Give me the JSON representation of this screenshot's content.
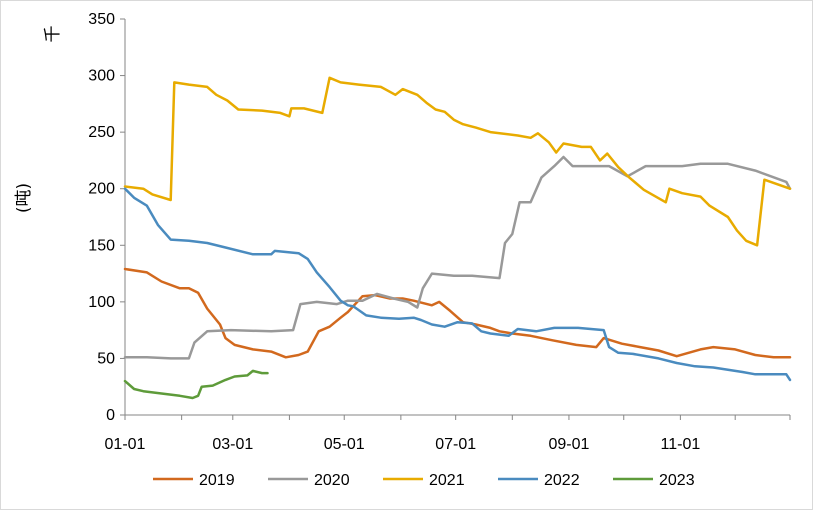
{
  "chart_data": {
    "type": "line",
    "title": "",
    "xlabel": "",
    "ylabel": "(吨)",
    "yunit": "千",
    "ylim": [
      0,
      350
    ],
    "y_ticks": [
      0,
      50,
      100,
      150,
      200,
      250,
      300,
      350
    ],
    "x_ticks": [
      "01-01",
      "03-01",
      "05-01",
      "07-01",
      "09-01",
      "11-01"
    ],
    "x_tick_days": [
      0,
      59,
      120,
      181,
      243,
      304
    ],
    "x_domain_days": [
      0,
      364
    ],
    "grid": false,
    "legend": "bottom",
    "series": [
      {
        "name": "2019",
        "color": "#d2691e",
        "points": [
          [
            0,
            129
          ],
          [
            12,
            126
          ],
          [
            20,
            118
          ],
          [
            30,
            112
          ],
          [
            35,
            112
          ],
          [
            40,
            108
          ],
          [
            45,
            94
          ],
          [
            52,
            80
          ],
          [
            55,
            68
          ],
          [
            60,
            62
          ],
          [
            70,
            58
          ],
          [
            80,
            56
          ],
          [
            88,
            51
          ],
          [
            95,
            53
          ],
          [
            100,
            56
          ],
          [
            106,
            74
          ],
          [
            112,
            78
          ],
          [
            118,
            86
          ],
          [
            122,
            91
          ],
          [
            130,
            105
          ],
          [
            137,
            106
          ],
          [
            145,
            103
          ],
          [
            152,
            103
          ],
          [
            158,
            101
          ],
          [
            168,
            97
          ],
          [
            172,
            100
          ],
          [
            178,
            92
          ],
          [
            185,
            82
          ],
          [
            192,
            80
          ],
          [
            200,
            77
          ],
          [
            205,
            74
          ],
          [
            212,
            72
          ],
          [
            222,
            70
          ],
          [
            234,
            66
          ],
          [
            247,
            62
          ],
          [
            258,
            60
          ],
          [
            262,
            68
          ],
          [
            272,
            63
          ],
          [
            282,
            60
          ],
          [
            292,
            57
          ],
          [
            302,
            52
          ],
          [
            315,
            58
          ],
          [
            322,
            60
          ],
          [
            334,
            58
          ],
          [
            345,
            53
          ],
          [
            355,
            51
          ],
          [
            364,
            51
          ]
        ]
      },
      {
        "name": "2020",
        "color": "#999999",
        "points": [
          [
            0,
            51
          ],
          [
            12,
            51
          ],
          [
            25,
            50
          ],
          [
            35,
            50
          ],
          [
            38,
            64
          ],
          [
            45,
            74
          ],
          [
            58,
            75
          ],
          [
            80,
            74
          ],
          [
            92,
            75
          ],
          [
            96,
            98
          ],
          [
            105,
            100
          ],
          [
            116,
            98
          ],
          [
            122,
            101
          ],
          [
            130,
            101
          ],
          [
            138,
            107
          ],
          [
            147,
            103
          ],
          [
            155,
            100
          ],
          [
            160,
            95
          ],
          [
            163,
            112
          ],
          [
            168,
            125
          ],
          [
            180,
            123
          ],
          [
            190,
            123
          ],
          [
            205,
            121
          ],
          [
            208,
            152
          ],
          [
            212,
            160
          ],
          [
            216,
            188
          ],
          [
            222,
            188
          ],
          [
            228,
            210
          ],
          [
            235,
            220
          ],
          [
            240,
            228
          ],
          [
            245,
            220
          ],
          [
            255,
            220
          ],
          [
            265,
            220
          ],
          [
            275,
            211
          ],
          [
            285,
            220
          ],
          [
            305,
            220
          ],
          [
            315,
            222
          ],
          [
            330,
            222
          ],
          [
            345,
            216
          ],
          [
            362,
            206
          ],
          [
            364,
            200
          ]
        ]
      },
      {
        "name": "2021",
        "color": "#e8ab00",
        "points": [
          [
            0,
            202
          ],
          [
            10,
            200
          ],
          [
            15,
            195
          ],
          [
            25,
            190
          ],
          [
            27,
            294
          ],
          [
            35,
            292
          ],
          [
            45,
            290
          ],
          [
            50,
            283
          ],
          [
            56,
            278
          ],
          [
            62,
            270
          ],
          [
            75,
            269
          ],
          [
            85,
            267
          ],
          [
            90,
            264
          ],
          [
            91,
            271
          ],
          [
            98,
            271
          ],
          [
            108,
            267
          ],
          [
            112,
            298
          ],
          [
            118,
            294
          ],
          [
            128,
            292
          ],
          [
            140,
            290
          ],
          [
            148,
            283
          ],
          [
            152,
            288
          ],
          [
            160,
            283
          ],
          [
            165,
            276
          ],
          [
            170,
            270
          ],
          [
            175,
            268
          ],
          [
            180,
            261
          ],
          [
            185,
            257
          ],
          [
            192,
            254
          ],
          [
            200,
            250
          ],
          [
            215,
            247
          ],
          [
            222,
            245
          ],
          [
            226,
            249
          ],
          [
            232,
            241
          ],
          [
            236,
            232
          ],
          [
            240,
            240
          ],
          [
            250,
            237
          ],
          [
            255,
            237
          ],
          [
            260,
            225
          ],
          [
            264,
            231
          ],
          [
            270,
            219
          ],
          [
            276,
            210
          ],
          [
            284,
            199
          ],
          [
            296,
            188
          ],
          [
            298,
            200
          ],
          [
            305,
            196
          ],
          [
            315,
            193
          ],
          [
            320,
            185
          ],
          [
            330,
            175
          ],
          [
            335,
            163
          ],
          [
            340,
            154
          ],
          [
            346,
            150
          ],
          [
            350,
            208
          ],
          [
            364,
            200
          ]
        ]
      },
      {
        "name": "2022",
        "color": "#4a8bbf",
        "points": [
          [
            0,
            200
          ],
          [
            5,
            192
          ],
          [
            12,
            185
          ],
          [
            18,
            168
          ],
          [
            25,
            155
          ],
          [
            35,
            154
          ],
          [
            45,
            152
          ],
          [
            55,
            148
          ],
          [
            70,
            142
          ],
          [
            80,
            142
          ],
          [
            82,
            145
          ],
          [
            95,
            143
          ],
          [
            100,
            138
          ],
          [
            105,
            126
          ],
          [
            112,
            113
          ],
          [
            118,
            101
          ],
          [
            122,
            97
          ],
          [
            125,
            96
          ],
          [
            132,
            88
          ],
          [
            140,
            86
          ],
          [
            150,
            85
          ],
          [
            158,
            86
          ],
          [
            162,
            84
          ],
          [
            168,
            80
          ],
          [
            175,
            78
          ],
          [
            182,
            82
          ],
          [
            190,
            81
          ],
          [
            195,
            74
          ],
          [
            200,
            72
          ],
          [
            210,
            70
          ],
          [
            215,
            76
          ],
          [
            225,
            74
          ],
          [
            235,
            77
          ],
          [
            248,
            77
          ],
          [
            262,
            75
          ],
          [
            265,
            60
          ],
          [
            270,
            55
          ],
          [
            278,
            54
          ],
          [
            292,
            50
          ],
          [
            302,
            46
          ],
          [
            312,
            43
          ],
          [
            322,
            42
          ],
          [
            338,
            38
          ],
          [
            345,
            36
          ],
          [
            362,
            36
          ],
          [
            364,
            31
          ]
        ]
      },
      {
        "name": "2023",
        "color": "#5e9b3a",
        "points": [
          [
            0,
            30
          ],
          [
            5,
            23
          ],
          [
            10,
            21
          ],
          [
            20,
            19
          ],
          [
            30,
            17
          ],
          [
            37,
            15
          ],
          [
            40,
            17
          ],
          [
            42,
            25
          ],
          [
            48,
            26
          ],
          [
            55,
            31
          ],
          [
            60,
            34
          ],
          [
            67,
            35
          ],
          [
            70,
            39
          ],
          [
            75,
            37
          ],
          [
            78,
            37
          ]
        ]
      }
    ]
  }
}
